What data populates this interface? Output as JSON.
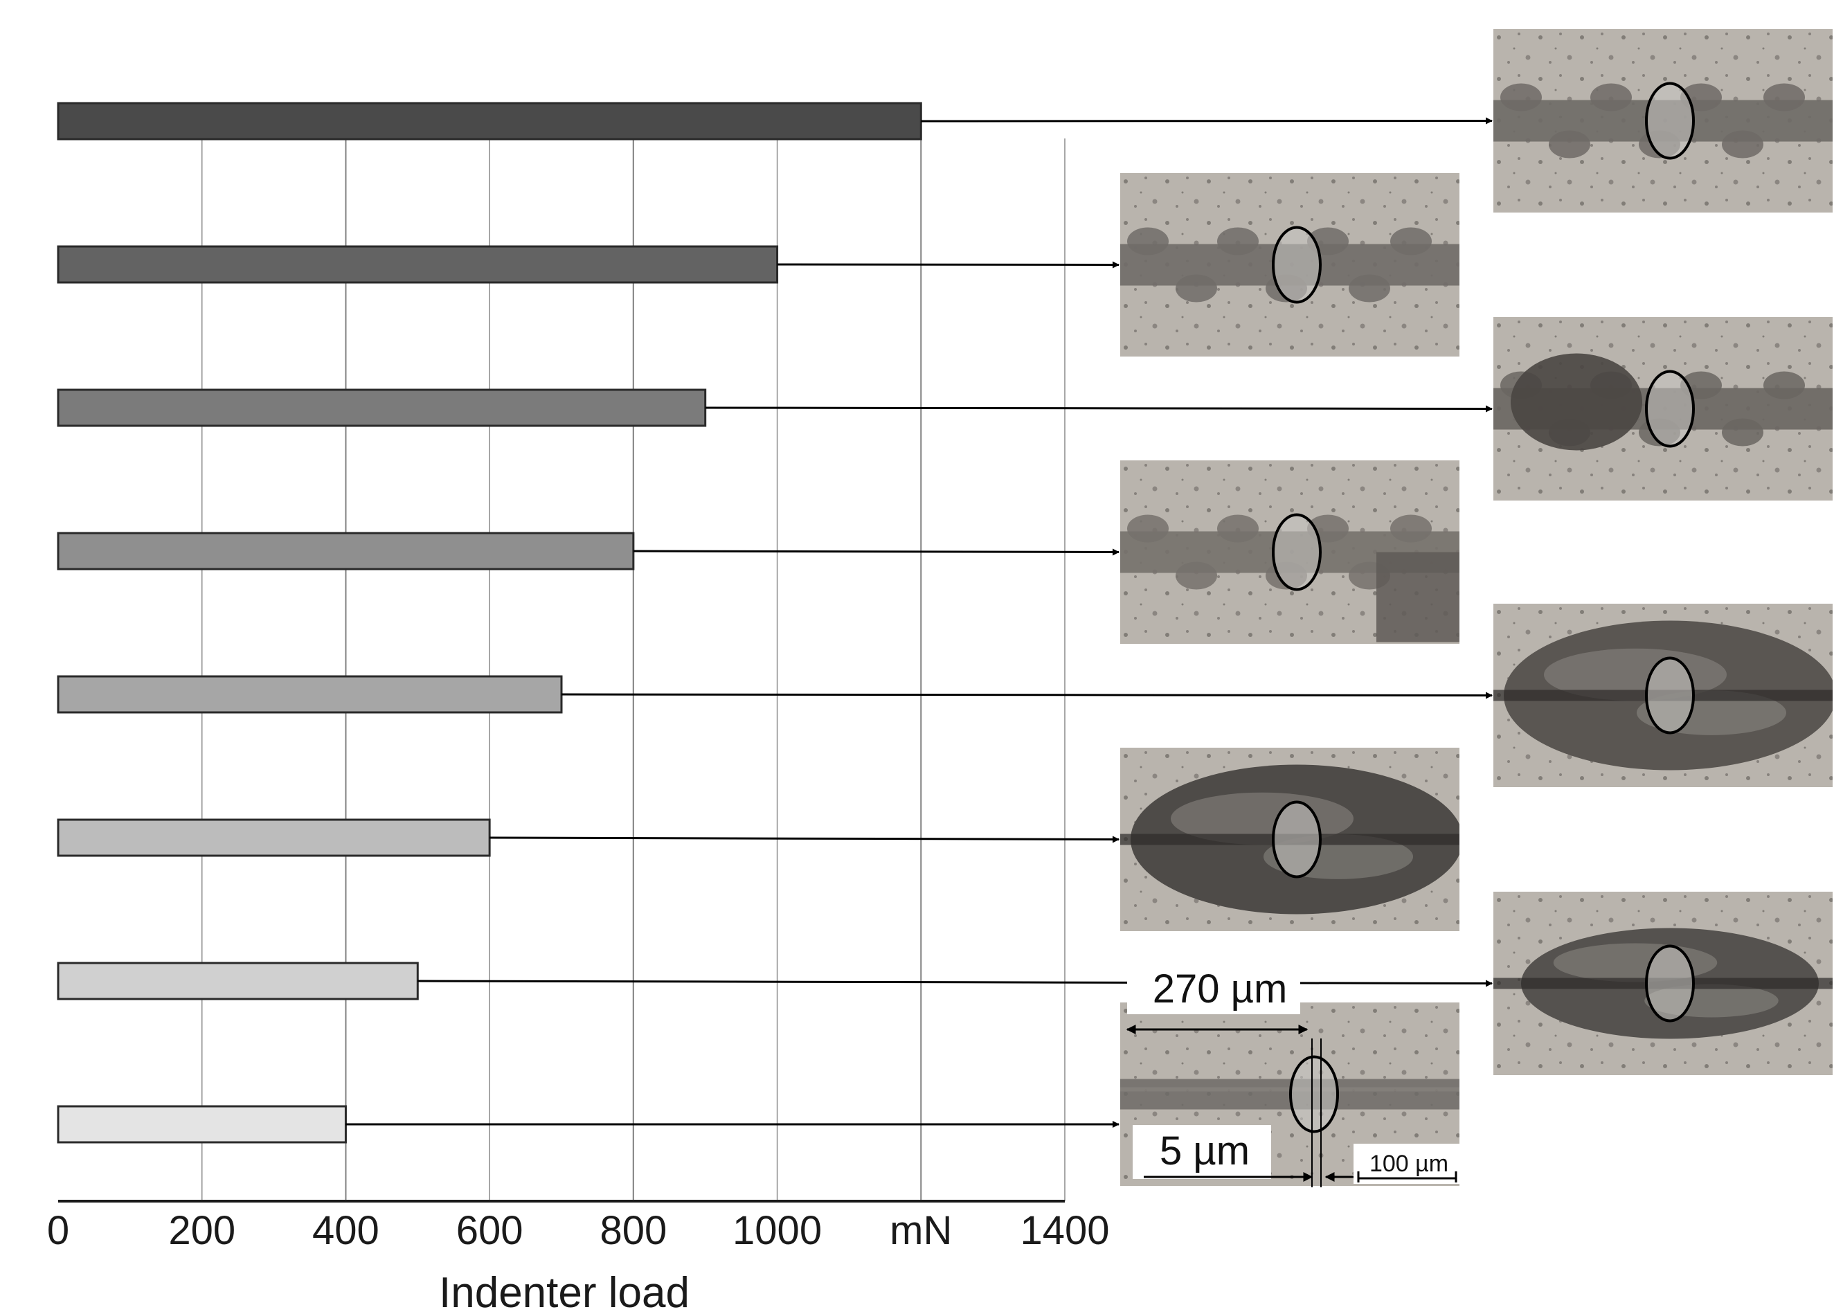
{
  "chart_data": {
    "type": "bar",
    "orientation": "horizontal",
    "values": [
      1200,
      1000,
      900,
      800,
      700,
      600,
      500,
      400
    ],
    "bar_colors": [
      "#4a4a4a",
      "#636363",
      "#7b7b7b",
      "#8f8f8f",
      "#a6a6a6",
      "#bcbcbc",
      "#d0d0d0",
      "#e4e4e4"
    ],
    "xlim": [
      0,
      1400
    ],
    "x_ticks": [
      "0",
      "200",
      "400",
      "600",
      "800",
      "1000",
      "mN",
      "1400"
    ],
    "x_tick_values": [
      0,
      200,
      400,
      600,
      800,
      1000,
      1200,
      1400
    ],
    "xlabel": "Indenter load",
    "grid": true
  },
  "annotations": {
    "width_label": "270 µm",
    "depth_label": "5 µm",
    "scale_bar_label": "100 µm"
  },
  "micrographs": [
    {
      "name": "micrograph-1200",
      "kind": "chipped",
      "tone": "#6e6a66"
    },
    {
      "name": "micrograph-1000",
      "kind": "chipped",
      "tone": "#706c68"
    },
    {
      "name": "micrograph-900",
      "kind": "chipped-heavy",
      "tone": "#6a6662"
    },
    {
      "name": "micrograph-800",
      "kind": "chipped",
      "tone": "#75716c"
    },
    {
      "name": "micrograph-700",
      "kind": "lens",
      "tone": "#5a5652"
    },
    {
      "name": "micrograph-600",
      "kind": "lens",
      "tone": "#4e4b48"
    },
    {
      "name": "micrograph-500",
      "kind": "lens-small",
      "tone": "#55524f"
    },
    {
      "name": "micrograph-400",
      "kind": "groove",
      "tone": "#6d6a66"
    }
  ],
  "colors": {
    "background": "#ffffff",
    "axis": "#1a1a1a",
    "grid": "#8a8a8a",
    "micrograph_bg": "#b9b4ad",
    "ellipse": "#000000"
  }
}
